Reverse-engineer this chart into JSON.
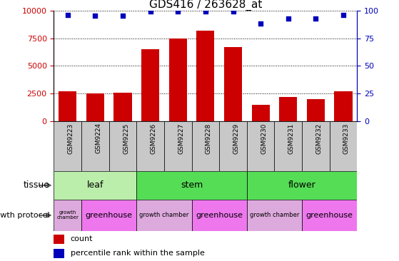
{
  "title": "GDS416 / 263628_at",
  "samples": [
    "GSM9223",
    "GSM9224",
    "GSM9225",
    "GSM9226",
    "GSM9227",
    "GSM9228",
    "GSM9229",
    "GSM9230",
    "GSM9231",
    "GSM9232",
    "GSM9233"
  ],
  "counts": [
    2700,
    2500,
    2600,
    6500,
    7500,
    8200,
    6700,
    1500,
    2200,
    2000,
    2700
  ],
  "percentiles": [
    96,
    95,
    95,
    99,
    99,
    99,
    99,
    88,
    93,
    93,
    96
  ],
  "bar_color": "#cc0000",
  "dot_color": "#0000bb",
  "ylim_left": [
    0,
    10000
  ],
  "ylim_right": [
    0,
    100
  ],
  "yticks_left": [
    0,
    2500,
    5000,
    7500,
    10000
  ],
  "yticks_right": [
    0,
    25,
    50,
    75,
    100
  ],
  "tissue_groups": [
    {
      "label": "leaf",
      "start": 0,
      "end": 3,
      "color": "#bbeeaa"
    },
    {
      "label": "stem",
      "start": 3,
      "end": 7,
      "color": "#55dd55"
    },
    {
      "label": "flower",
      "start": 7,
      "end": 11,
      "color": "#55dd55"
    }
  ],
  "growth_groups": [
    {
      "label": "growth\nchamber",
      "start": 0,
      "end": 1,
      "color": "#ddaadd",
      "fontsize": 5
    },
    {
      "label": "greenhouse",
      "start": 1,
      "end": 3,
      "color": "#ee77ee",
      "fontsize": 8
    },
    {
      "label": "growth chamber",
      "start": 3,
      "end": 5,
      "color": "#ddaadd",
      "fontsize": 6
    },
    {
      "label": "greenhouse",
      "start": 5,
      "end": 7,
      "color": "#ee77ee",
      "fontsize": 8
    },
    {
      "label": "growth chamber",
      "start": 7,
      "end": 9,
      "color": "#ddaadd",
      "fontsize": 6
    },
    {
      "label": "greenhouse",
      "start": 9,
      "end": 11,
      "color": "#ee77ee",
      "fontsize": 8
    }
  ],
  "xtick_bg_color": "#c8c8c8",
  "tissue_row_label": "tissue",
  "growth_row_label": "growth protocol",
  "legend_count_label": "count",
  "legend_pct_label": "percentile rank within the sample",
  "left_color": "#cc0000",
  "right_color": "#0000bb",
  "title_fontsize": 11
}
